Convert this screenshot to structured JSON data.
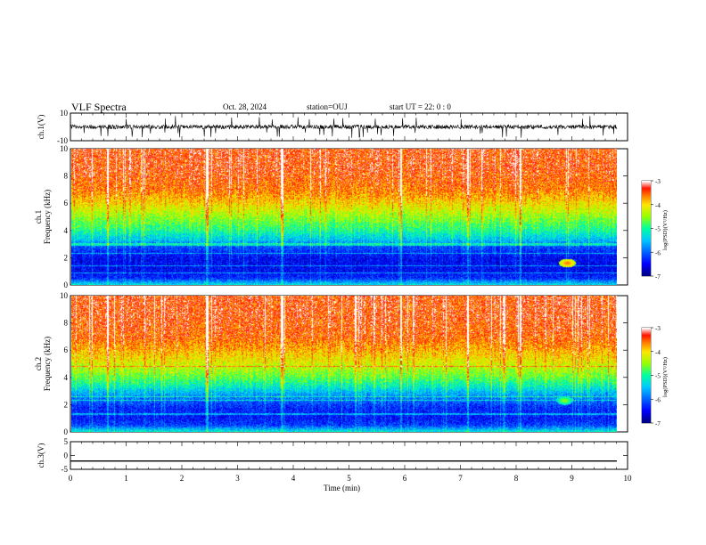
{
  "header": {
    "title": "VLF Spectra",
    "date": "Oct. 28, 2024",
    "station": "station=OUJ",
    "start": "start  UT =   22: 0  : 0"
  },
  "colors": {
    "trace": "#000000",
    "colormap": [
      "#000080",
      "#0000ff",
      "#0080ff",
      "#00ffff",
      "#80ff80",
      "#ffff00",
      "#ff8000",
      "#ff0000",
      "#ffffff"
    ]
  },
  "chart_data": [
    {
      "type": "line",
      "panel": "ch1-waveform",
      "ylabel": "ch.1(V)",
      "xlim": [
        0,
        9.85
      ],
      "ylim": [
        -10,
        10
      ],
      "yticks": [
        "10",
        "-10"
      ],
      "baseline": 0,
      "noise_amplitude": 3,
      "spikes_to": [
        -8,
        8
      ]
    },
    {
      "type": "heatmap",
      "panel": "ch1-spectrogram",
      "ylabel": "ch.1 Frequency  (kHz)",
      "xlim": [
        0,
        9.85
      ],
      "ylim": [
        0,
        10
      ],
      "yticks": [
        "0",
        "2",
        "4",
        "6",
        "8",
        "10"
      ],
      "colorbar": {
        "label": "log(PSD)(V²/Hz)",
        "ticks": [
          "-3",
          "-4",
          "-5",
          "-6",
          "-7"
        ],
        "range": [
          -7,
          -3
        ]
      },
      "frequency_profile_log_psd": [
        {
          "f_khz": 0.0,
          "v": -5.3
        },
        {
          "f_khz": 0.5,
          "v": -6.3
        },
        {
          "f_khz": 1.0,
          "v": -6.5
        },
        {
          "f_khz": 2.0,
          "v": -6.5
        },
        {
          "f_khz": 2.8,
          "v": -6.1
        },
        {
          "f_khz": 3.3,
          "v": -5.5
        },
        {
          "f_khz": 4.0,
          "v": -5.0
        },
        {
          "f_khz": 5.0,
          "v": -4.5
        },
        {
          "f_khz": 6.0,
          "v": -4.0
        },
        {
          "f_khz": 7.0,
          "v": -3.6
        },
        {
          "f_khz": 8.5,
          "v": -3.4
        },
        {
          "f_khz": 10.0,
          "v": -3.4
        }
      ],
      "narrowband_lines_khz": [
        0.9,
        1.4,
        2.3,
        2.9,
        3.0
      ],
      "bursts_min": [
        0.65,
        2.45,
        3.8,
        5.95,
        7.15,
        8.1
      ],
      "features": [
        {
          "t_min": 8.95,
          "f_khz": 1.6,
          "v": -3.6
        }
      ]
    },
    {
      "type": "heatmap",
      "panel": "ch2-spectrogram",
      "ylabel": "ch.2 Frequency  (kHz)",
      "xlim": [
        0,
        9.85
      ],
      "ylim": [
        0,
        10
      ],
      "yticks": [
        "0",
        "2",
        "4",
        "6",
        "8",
        "10"
      ],
      "colorbar": {
        "label": "log(PSD)(V²/Hz)",
        "ticks": [
          "-3",
          "-4",
          "-5",
          "-6",
          "-7"
        ],
        "range": [
          -7,
          -3
        ]
      },
      "frequency_profile_log_psd": [
        {
          "f_khz": 0.0,
          "v": -5.2
        },
        {
          "f_khz": 0.5,
          "v": -6.2
        },
        {
          "f_khz": 1.0,
          "v": -6.4
        },
        {
          "f_khz": 1.8,
          "v": -6.3
        },
        {
          "f_khz": 2.6,
          "v": -5.8
        },
        {
          "f_khz": 3.3,
          "v": -5.2
        },
        {
          "f_khz": 4.0,
          "v": -4.7
        },
        {
          "f_khz": 5.0,
          "v": -4.2
        },
        {
          "f_khz": 6.0,
          "v": -3.8
        },
        {
          "f_khz": 7.0,
          "v": -3.5
        },
        {
          "f_khz": 8.5,
          "v": -3.4
        },
        {
          "f_khz": 10.0,
          "v": -3.4
        }
      ],
      "narrowband_lines_khz": [
        1.3,
        2.3,
        2.6,
        4.8
      ],
      "bursts_min": [
        0.65,
        2.45,
        3.8,
        5.95,
        7.15,
        8.1
      ],
      "features": [
        {
          "t_min": 8.9,
          "f_khz": 2.3,
          "v": -4.5
        }
      ]
    },
    {
      "type": "line",
      "panel": "ch3-waveform",
      "ylabel": "ch.3(V)",
      "xlabel": "Time  (min)",
      "xlim": [
        0,
        10
      ],
      "ylim": [
        -5,
        5
      ],
      "yticks": [
        "5",
        "0",
        "-5"
      ],
      "xticks": [
        "0",
        "1",
        "2",
        "3",
        "4",
        "5",
        "6",
        "7",
        "8",
        "9",
        "10"
      ],
      "series": [
        {
          "x": [
            0,
            9.85
          ],
          "y": [
            -2,
            -2
          ]
        }
      ]
    }
  ]
}
